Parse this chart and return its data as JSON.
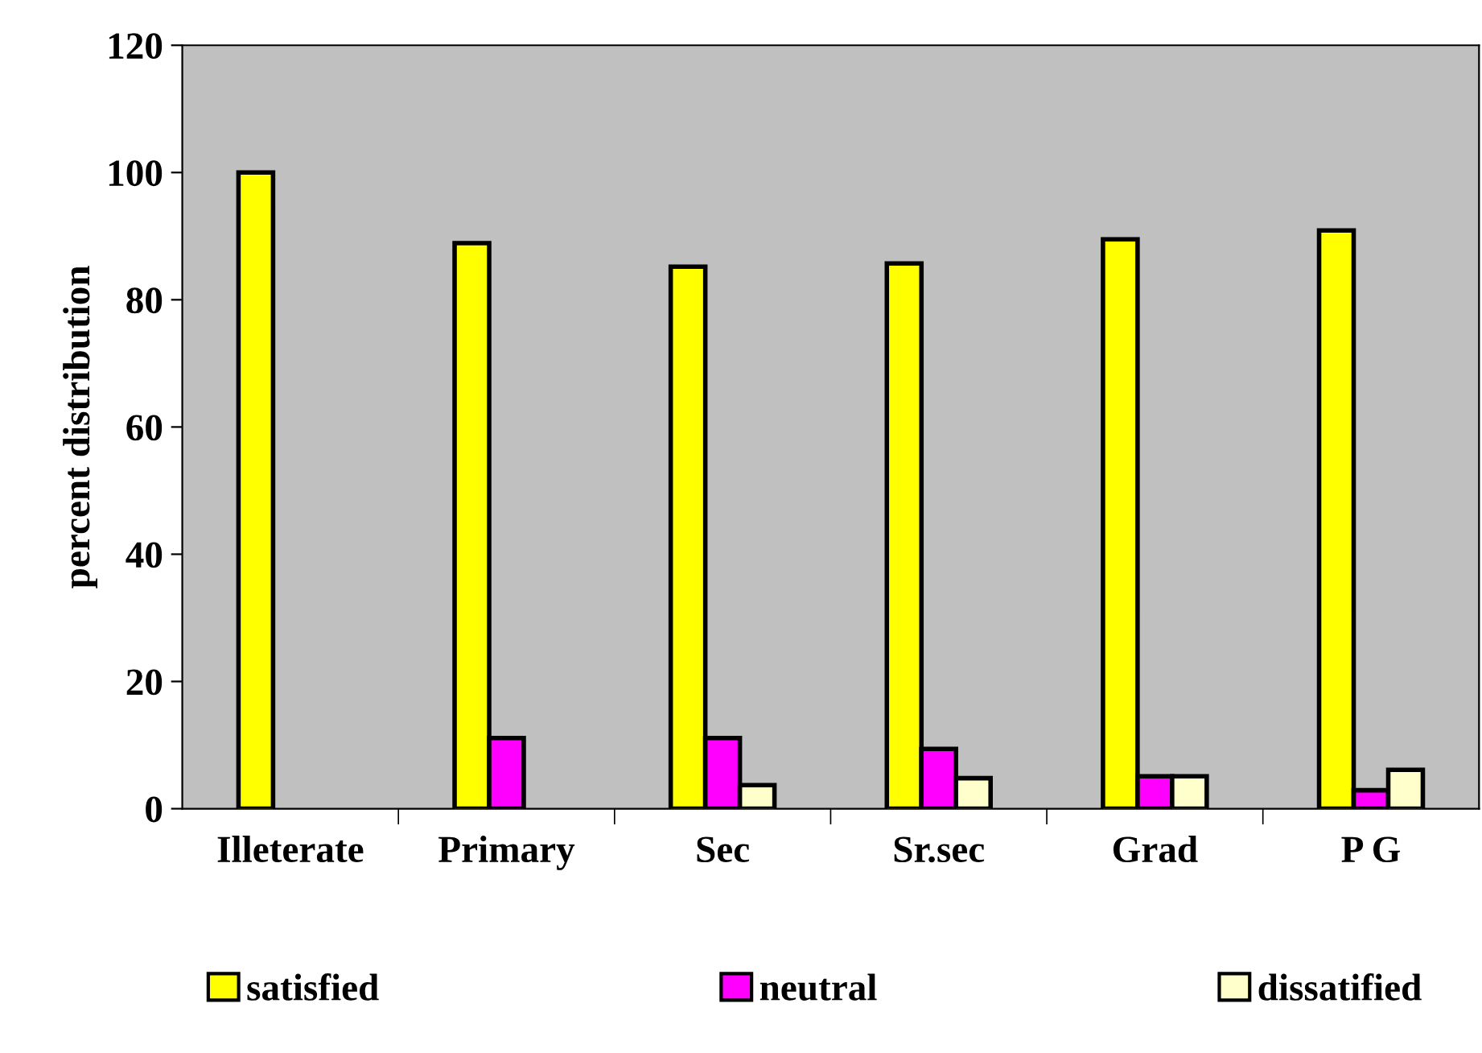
{
  "chart_data": {
    "type": "bar",
    "ylabel": "percent distribution",
    "categories": [
      "Illeterate",
      "Primary",
      "Sec",
      "Sr.sec",
      "Grad",
      "P G"
    ],
    "series": [
      {
        "name": "satisfied",
        "color": "#ffff00",
        "values": [
          100,
          88.9,
          85.2,
          85.7,
          89.5,
          90.9
        ]
      },
      {
        "name": "neutral",
        "color": "#ff00ff",
        "values": [
          null,
          11.1,
          11.1,
          9.4,
          5.1,
          2.9
        ]
      },
      {
        "name": "dissatified",
        "color": "#ffffcc",
        "values": [
          null,
          null,
          3.7,
          4.8,
          5.1,
          6.1
        ]
      }
    ],
    "ylim": [
      0,
      120
    ],
    "yticks": [
      0,
      20,
      40,
      60,
      80,
      100,
      120
    ],
    "grid": false,
    "legend": "bottom"
  }
}
